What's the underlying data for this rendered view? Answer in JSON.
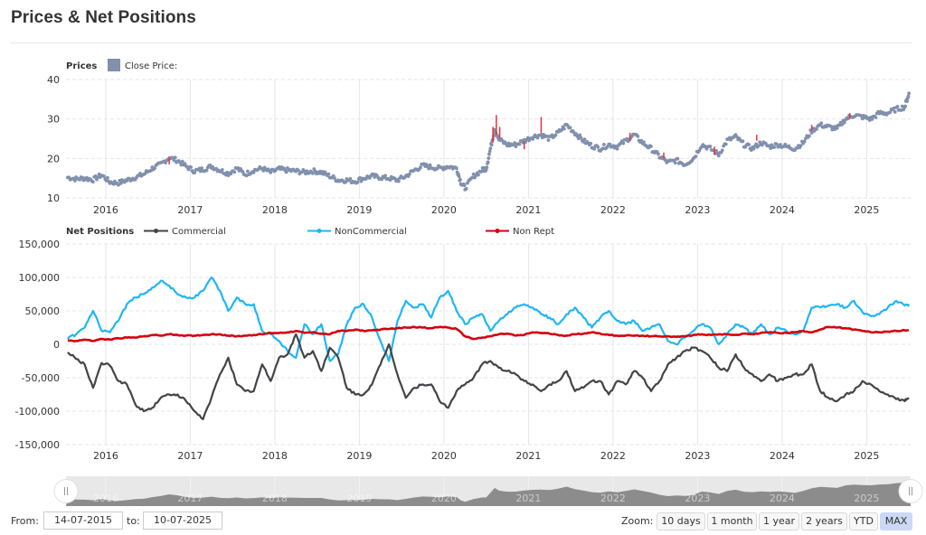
{
  "page": {
    "title": "Prices & Net Positions"
  },
  "colors": {
    "price": "#8090ad",
    "price_down": "#e8323c",
    "commercial": "#434348",
    "noncommercial": "#1eb6f5",
    "nonrept": "#d3000e",
    "grid": "#e6e6e6",
    "navigator_fill": "#8c8c8c",
    "navigator_bg": "#e8e8e8",
    "zoom_active": "#cbd9f7"
  },
  "chart_data": [
    {
      "type": "scatter",
      "title": "Prices",
      "legend": [
        {
          "name": "Close Price:",
          "color": "#8090ad"
        }
      ],
      "ylim": [
        10,
        40
      ],
      "yticks": [
        "40",
        "30",
        "20",
        "10"
      ],
      "ytick_values": [
        40,
        30,
        20,
        10
      ],
      "xlim": [
        2015.53,
        2025.52
      ],
      "xticks": [
        "2016",
        "2017",
        "2018",
        "2019",
        "2020",
        "2021",
        "2022",
        "2023",
        "2024",
        "2025"
      ],
      "xtick_values": [
        2016,
        2017,
        2018,
        2019,
        2020,
        2021,
        2022,
        2023,
        2024,
        2025
      ],
      "grid": true,
      "series": [
        {
          "name": "Close Price",
          "x": [
            2015.55,
            2015.65,
            2015.75,
            2015.85,
            2015.95,
            2016.05,
            2016.15,
            2016.25,
            2016.35,
            2016.45,
            2016.55,
            2016.65,
            2016.75,
            2016.85,
            2016.95,
            2017.05,
            2017.15,
            2017.25,
            2017.35,
            2017.45,
            2017.55,
            2017.65,
            2017.75,
            2017.85,
            2017.95,
            2018.05,
            2018.15,
            2018.25,
            2018.35,
            2018.45,
            2018.55,
            2018.65,
            2018.75,
            2018.85,
            2018.95,
            2019.05,
            2019.15,
            2019.25,
            2019.35,
            2019.45,
            2019.55,
            2019.65,
            2019.75,
            2019.85,
            2019.95,
            2020.05,
            2020.15,
            2020.2,
            2020.25,
            2020.35,
            2020.45,
            2020.5,
            2020.55,
            2020.6,
            2020.65,
            2020.75,
            2020.85,
            2020.95,
            2021.05,
            2021.15,
            2021.25,
            2021.35,
            2021.45,
            2021.55,
            2021.65,
            2021.75,
            2021.85,
            2021.95,
            2022.05,
            2022.15,
            2022.25,
            2022.35,
            2022.45,
            2022.55,
            2022.65,
            2022.75,
            2022.85,
            2022.95,
            2023.05,
            2023.15,
            2023.25,
            2023.35,
            2023.45,
            2023.55,
            2023.65,
            2023.75,
            2023.85,
            2023.95,
            2024.05,
            2024.15,
            2024.25,
            2024.35,
            2024.45,
            2024.55,
            2024.65,
            2024.75,
            2024.85,
            2024.95,
            2025.05,
            2025.15,
            2025.25,
            2025.35,
            2025.45,
            2025.5
          ],
          "y": [
            15.2,
            14.8,
            15.0,
            14.6,
            15.8,
            14.0,
            13.8,
            14.5,
            15.2,
            16.0,
            17.5,
            18.5,
            20.2,
            19.5,
            18.0,
            16.8,
            17.2,
            18.0,
            17.0,
            16.2,
            17.5,
            16.0,
            17.0,
            17.5,
            16.5,
            17.3,
            17.0,
            16.8,
            16.5,
            16.8,
            16.5,
            15.5,
            14.5,
            14.5,
            14.2,
            15.0,
            15.5,
            15.2,
            15.0,
            14.5,
            15.5,
            17.0,
            18.2,
            17.8,
            17.5,
            18.0,
            17.5,
            14.0,
            12.5,
            15.5,
            17.0,
            17.5,
            22.5,
            27.5,
            24.8,
            23.5,
            23.5,
            24.5,
            25.5,
            26.0,
            25.0,
            26.5,
            28.5,
            26.5,
            24.5,
            23.2,
            22.5,
            23.5,
            23.0,
            24.5,
            26.0,
            24.0,
            22.5,
            20.5,
            19.0,
            19.5,
            18.5,
            20.0,
            23.5,
            22.5,
            21.0,
            24.5,
            25.5,
            23.5,
            22.5,
            24.0,
            23.0,
            23.5,
            23.0,
            22.5,
            24.0,
            27.0,
            28.5,
            28.0,
            27.5,
            30.0,
            31.0,
            30.5,
            30.0,
            31.5,
            31.5,
            32.5,
            33.0,
            36.5
          ],
          "note": "red marks visible near 2016.75, 2020.6, 2021.15, 2022.2, 2022.6, 2023.2, 2023.7, 2024.35, 2024.8"
        }
      ]
    },
    {
      "type": "line",
      "title": "Net Positions",
      "legend": [
        {
          "name": "Commercial",
          "color": "#434348"
        },
        {
          "name": "NonCommercial",
          "color": "#1eb6f5"
        },
        {
          "name": "Non Rept",
          "color": "#d3000e"
        }
      ],
      "ylim": [
        -150000,
        150000
      ],
      "yticks": [
        "150,000",
        "100,000",
        "50,000",
        "0",
        "-50,000",
        "-100,000",
        "-150,000"
      ],
      "ytick_values": [
        150000,
        100000,
        50000,
        0,
        -50000,
        -100000,
        -150000
      ],
      "xlim": [
        2015.53,
        2025.52
      ],
      "xticks": [
        "2016",
        "2017",
        "2018",
        "2019",
        "2020",
        "2021",
        "2022",
        "2023",
        "2024",
        "2025"
      ],
      "xtick_values": [
        2016,
        2017,
        2018,
        2019,
        2020,
        2021,
        2022,
        2023,
        2024,
        2025
      ],
      "grid": true,
      "x": [
        2015.55,
        2015.65,
        2015.75,
        2015.85,
        2015.95,
        2016.05,
        2016.15,
        2016.25,
        2016.35,
        2016.45,
        2016.55,
        2016.65,
        2016.75,
        2016.85,
        2016.95,
        2017.05,
        2017.15,
        2017.25,
        2017.35,
        2017.45,
        2017.55,
        2017.65,
        2017.75,
        2017.85,
        2017.95,
        2018.05,
        2018.15,
        2018.25,
        2018.35,
        2018.45,
        2018.55,
        2018.65,
        2018.75,
        2018.85,
        2018.95,
        2019.05,
        2019.15,
        2019.25,
        2019.35,
        2019.45,
        2019.55,
        2019.65,
        2019.75,
        2019.85,
        2019.95,
        2020.05,
        2020.15,
        2020.25,
        2020.35,
        2020.45,
        2020.55,
        2020.65,
        2020.75,
        2020.85,
        2020.95,
        2021.05,
        2021.15,
        2021.25,
        2021.35,
        2021.45,
        2021.55,
        2021.65,
        2021.75,
        2021.85,
        2021.95,
        2022.05,
        2022.15,
        2022.25,
        2022.35,
        2022.45,
        2022.55,
        2022.65,
        2022.75,
        2022.85,
        2022.95,
        2023.05,
        2023.15,
        2023.25,
        2023.35,
        2023.45,
        2023.55,
        2023.65,
        2023.75,
        2023.85,
        2023.95,
        2024.05,
        2024.15,
        2024.25,
        2024.35,
        2024.45,
        2024.55,
        2024.65,
        2024.75,
        2024.85,
        2024.95,
        2025.05,
        2025.15,
        2025.25,
        2025.35,
        2025.45,
        2025.5
      ],
      "series": [
        {
          "name": "Commercial",
          "values": [
            -12000,
            -22000,
            -30000,
            -65000,
            -28000,
            -32000,
            -55000,
            -60000,
            -90000,
            -100000,
            -95000,
            -80000,
            -75000,
            -75000,
            -85000,
            -100000,
            -112000,
            -80000,
            -45000,
            -20000,
            -60000,
            -70000,
            -70000,
            -30000,
            -55000,
            -20000,
            -15000,
            15000,
            -20000,
            -10000,
            -40000,
            -5000,
            -20000,
            -65000,
            -75000,
            -75000,
            -60000,
            -30000,
            0,
            -45000,
            -80000,
            -65000,
            -60000,
            -60000,
            -85000,
            -95000,
            -70000,
            -60000,
            -50000,
            -30000,
            -25000,
            -35000,
            -40000,
            -45000,
            -55000,
            -60000,
            -70000,
            -60000,
            -55000,
            -40000,
            -70000,
            -65000,
            -55000,
            -55000,
            -75000,
            -55000,
            -60000,
            -40000,
            -50000,
            -70000,
            -55000,
            -30000,
            -20000,
            -10000,
            -5000,
            -10000,
            -20000,
            -35000,
            -40000,
            -15000,
            -35000,
            -45000,
            -55000,
            -45000,
            -55000,
            -50000,
            -45000,
            -45000,
            -30000,
            -70000,
            -80000,
            -85000,
            -75000,
            -70000,
            -55000,
            -60000,
            -70000,
            -75000,
            -82000,
            -85000,
            -80000
          ]
        },
        {
          "name": "NonCommercial",
          "values": [
            8000,
            15000,
            25000,
            50000,
            20000,
            18000,
            35000,
            60000,
            70000,
            75000,
            85000,
            95000,
            88000,
            75000,
            70000,
            70000,
            80000,
            100000,
            80000,
            50000,
            70000,
            60000,
            60000,
            20000,
            15000,
            5000,
            -10000,
            -20000,
            30000,
            15000,
            30000,
            -25000,
            -15000,
            30000,
            55000,
            60000,
            40000,
            5000,
            -25000,
            35000,
            65000,
            55000,
            60000,
            40000,
            70000,
            80000,
            50000,
            30000,
            40000,
            45000,
            20000,
            35000,
            45000,
            55000,
            60000,
            55000,
            45000,
            40000,
            30000,
            45000,
            55000,
            40000,
            25000,
            40000,
            50000,
            35000,
            30000,
            35000,
            20000,
            25000,
            30000,
            5000,
            0,
            10000,
            20000,
            30000,
            25000,
            0,
            15000,
            30000,
            25000,
            15000,
            30000,
            15000,
            25000,
            20000,
            15000,
            20000,
            55000,
            55000,
            58000,
            60000,
            55000,
            65000,
            48000,
            42000,
            45000,
            55000,
            65000,
            58000,
            60000
          ]
        },
        {
          "name": "Non Rept",
          "values": [
            6000,
            5000,
            7000,
            5000,
            8000,
            7000,
            9000,
            10000,
            10000,
            12000,
            14000,
            13000,
            15000,
            14000,
            13000,
            13000,
            14000,
            15000,
            15000,
            13000,
            12000,
            13000,
            14000,
            15000,
            17000,
            17000,
            18000,
            20000,
            17000,
            18000,
            16000,
            15000,
            20000,
            20000,
            22000,
            20000,
            21000,
            22000,
            23000,
            24000,
            25000,
            26000,
            25000,
            24000,
            26000,
            25000,
            23000,
            12000,
            8000,
            10000,
            12000,
            15000,
            16000,
            13000,
            14000,
            18000,
            17000,
            16000,
            14000,
            13000,
            15000,
            16000,
            18000,
            16000,
            14000,
            13000,
            13000,
            13000,
            13000,
            12000,
            12000,
            12000,
            11000,
            12000,
            14000,
            15000,
            14000,
            15000,
            15000,
            14000,
            16000,
            15000,
            17000,
            18000,
            17000,
            17000,
            18000,
            20000,
            18000,
            22000,
            26000,
            25000,
            24000,
            22000,
            20000,
            18000,
            18000,
            19000,
            20000,
            21000,
            21000
          ]
        }
      ]
    },
    {
      "type": "area",
      "title": "Navigator",
      "xticks": [
        "2016",
        "2017",
        "2018",
        "2019",
        "2020",
        "2021",
        "2022",
        "2023",
        "2024",
        "2025"
      ]
    }
  ],
  "range_selector": {
    "from_label": "From:",
    "from_value": "14-07-2015",
    "to_label": "to:",
    "to_value": "10-07-2025",
    "zoom_label": "Zoom:",
    "buttons": [
      {
        "label": "10 days",
        "active": false
      },
      {
        "label": "1 month",
        "active": false
      },
      {
        "label": "1 year",
        "active": false
      },
      {
        "label": "2 years",
        "active": false
      },
      {
        "label": "YTD",
        "active": false
      },
      {
        "label": "MAX",
        "active": true
      }
    ]
  },
  "navigator": {
    "left_handle_icon": "grip-handle-icon",
    "right_handle_icon": "grip-handle-icon"
  }
}
